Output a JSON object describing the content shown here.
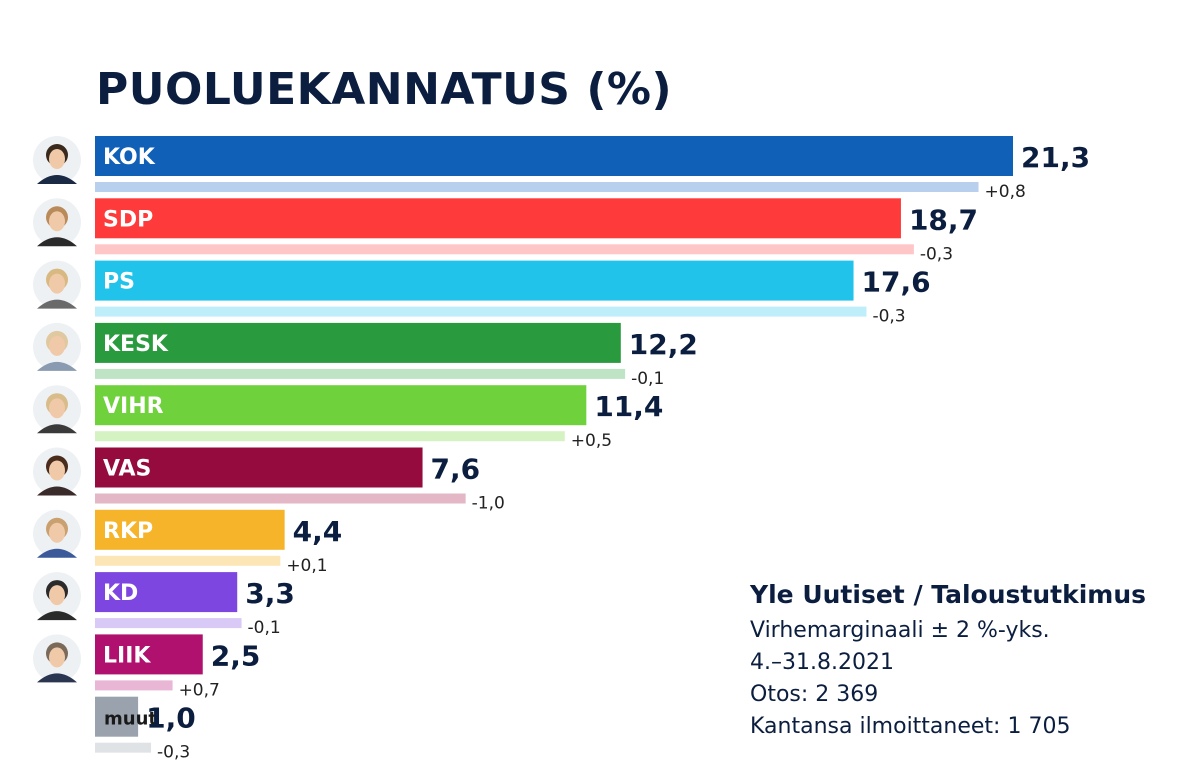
{
  "chart_data": {
    "type": "bar",
    "orientation": "horizontal",
    "title": "PUOLUEKANNATUS (%)",
    "xlim": [
      0,
      21.3
    ],
    "categories": [
      "KOK",
      "SDP",
      "PS",
      "KESK",
      "VIHR",
      "VAS",
      "RKP",
      "KD",
      "LIIK",
      "muut"
    ],
    "values": [
      21.3,
      18.7,
      17.6,
      12.2,
      11.4,
      7.6,
      4.4,
      3.3,
      2.5,
      1.0
    ],
    "value_labels": [
      "21,3",
      "18,7",
      "17,6",
      "12,2",
      "11,4",
      "7,6",
      "4,4",
      "3,3",
      "2,5",
      "1,0"
    ],
    "changes": [
      0.8,
      -0.3,
      -0.3,
      -0.1,
      0.5,
      -1.0,
      0.1,
      -0.1,
      0.7,
      -0.3
    ],
    "change_labels": [
      "+0,8",
      "-0,3",
      "-0,3",
      "-0,1",
      "+0,5",
      "-1,0",
      "+0,1",
      "-0,1",
      "+0,7",
      "-0,3"
    ],
    "previous_values": [
      20.5,
      19.0,
      17.9,
      12.3,
      10.9,
      8.6,
      4.3,
      3.4,
      1.8,
      1.3
    ],
    "colors": [
      "#1060b8",
      "#ff3a3a",
      "#22c3ea",
      "#2a9a3e",
      "#6fd13c",
      "#960b3e",
      "#f5b42a",
      "#7e46e0",
      "#b0116f",
      "#9aa3ad"
    ],
    "light_colors": [
      "#b9cfee",
      "#ffc6c8",
      "#bdeefa",
      "#bfe3c5",
      "#d5f2c3",
      "#e3b7c6",
      "#fce6b6",
      "#d8c9f7",
      "#eab6d5",
      "#e0e3e6"
    ],
    "icons": [
      "portrait-kok-icon",
      "portrait-sdp-icon",
      "portrait-ps-icon",
      "portrait-kesk-icon",
      "portrait-vihr-icon",
      "portrait-vas-icon",
      "portrait-rkp-icon",
      "portrait-kd-icon",
      "portrait-liik-icon"
    ]
  },
  "source": {
    "title": "Yle Uutiset / Taloustutkimus",
    "lines": [
      "Virhemarginaali ± 2 %-yks.",
      "4.–31.8.2021",
      "Otos: 2 369",
      "Kantansa ilmoittaneet: 1 705"
    ]
  }
}
